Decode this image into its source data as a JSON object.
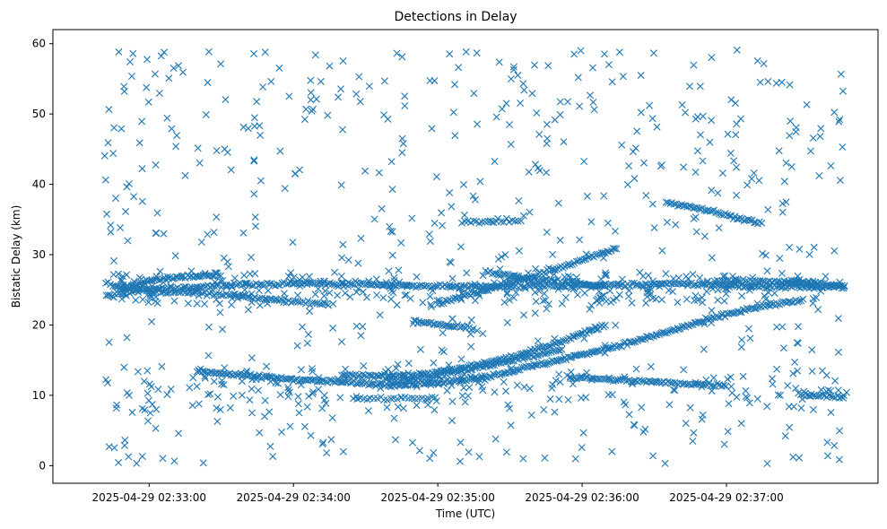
{
  "chart_data": {
    "type": "scatter",
    "title": "Detections in Delay",
    "xlabel": "Time (UTC)",
    "ylabel": "Bistatic Delay (km)",
    "marker": "x",
    "color": "#1f77b4",
    "xlim_seconds": [
      -0.33,
      5.39
    ],
    "ylim": [
      -2.5,
      62
    ],
    "x_reference": "2025-04-29 02:32:40",
    "x_ticks": [
      {
        "label": "2025-04-29 02:33:00",
        "t": 20
      },
      {
        "label": "2025-04-29 02:34:00",
        "t": 80
      },
      {
        "label": "2025-04-29 02:35:00",
        "t": 140
      },
      {
        "label": "2025-04-29 02:36:00",
        "t": 200
      },
      {
        "label": "2025-04-29 02:37:00",
        "t": 260
      }
    ],
    "y_ticks": [
      {
        "label": "0",
        "v": 0
      },
      {
        "label": "10",
        "v": 10
      },
      {
        "label": "20",
        "v": 20
      },
      {
        "label": "30",
        "v": 30
      },
      {
        "label": "40",
        "v": 40
      },
      {
        "label": "50",
        "v": 50
      },
      {
        "label": "60",
        "v": 60
      }
    ],
    "tracks": [
      {
        "points": [
          [
            2,
            24.2
          ],
          [
            20,
            25.0
          ],
          [
            40,
            25.4
          ],
          [
            60,
            25.8
          ],
          [
            80,
            25.9
          ],
          [
            100,
            25.8
          ],
          [
            120,
            25.6
          ],
          [
            140,
            25.5
          ],
          [
            170,
            25.5
          ],
          [
            200,
            25.6
          ],
          [
            230,
            25.8
          ],
          [
            250,
            25.8
          ],
          [
            270,
            25.5
          ],
          [
            300,
            25.4
          ],
          [
            309,
            25.5
          ]
        ],
        "step": 0.9
      },
      {
        "points": [
          [
            8,
            25.0
          ],
          [
            20,
            26.2
          ],
          [
            32,
            26.8
          ],
          [
            44,
            27.1
          ],
          [
            50,
            27.2
          ]
        ],
        "step": 0.8
      },
      {
        "points": [
          [
            2,
            26.0
          ],
          [
            12,
            25.2
          ],
          [
            20,
            24.8
          ],
          [
            40,
            24.6
          ],
          [
            60,
            24.0
          ],
          [
            80,
            23.3
          ],
          [
            95,
            23.0
          ]
        ],
        "step": 1.0
      },
      {
        "points": [
          [
            40,
            13.5
          ],
          [
            60,
            12.8
          ],
          [
            80,
            12.3
          ],
          [
            100,
            11.9
          ],
          [
            120,
            11.5
          ],
          [
            140,
            11.8
          ],
          [
            160,
            12.6
          ],
          [
            180,
            14.2
          ],
          [
            200,
            15.8
          ],
          [
            220,
            17.5
          ],
          [
            240,
            19.5
          ],
          [
            255,
            21.0
          ],
          [
            270,
            22.3
          ],
          [
            285,
            23.2
          ],
          [
            292,
            23.5
          ]
        ],
        "step": 0.75
      },
      {
        "points": [
          [
            100,
            12.8
          ],
          [
            115,
            12.8
          ],
          [
            130,
            12.9
          ],
          [
            145,
            13.5
          ],
          [
            160,
            14.6
          ],
          [
            175,
            15.8
          ],
          [
            190,
            17.5
          ],
          [
            203,
            19.2
          ],
          [
            210,
            20.0
          ]
        ],
        "step": 0.75
      },
      {
        "points": [
          [
            120,
            11.8
          ],
          [
            140,
            12.8
          ],
          [
            160,
            14.2
          ],
          [
            180,
            15.6
          ],
          [
            192,
            16.5
          ]
        ],
        "step": 0.9
      },
      {
        "points": [
          [
            140,
            23.0
          ],
          [
            160,
            25.0
          ],
          [
            180,
            27.0
          ],
          [
            200,
            29.2
          ],
          [
            215,
            31.0
          ]
        ],
        "step": 0.8
      },
      {
        "points": [
          [
            160,
            27.5
          ],
          [
            170,
            27.0
          ],
          [
            180,
            26.5
          ],
          [
            195,
            26.0
          ],
          [
            210,
            25.5
          ]
        ],
        "step": 0.9
      },
      {
        "points": [
          [
            195,
            12.5
          ],
          [
            215,
            12.2
          ],
          [
            240,
            11.7
          ],
          [
            260,
            11.4
          ]
        ],
        "step": 0.9
      },
      {
        "points": [
          [
            235,
            37.5
          ],
          [
            250,
            36.5
          ],
          [
            265,
            35.2
          ],
          [
            275,
            34.5
          ]
        ],
        "step": 0.8
      },
      {
        "points": [
          [
            130,
            20.5
          ],
          [
            142,
            20.0
          ],
          [
            155,
            19.5
          ]
        ],
        "step": 0.8
      },
      {
        "points": [
          [
            282,
            26.0
          ],
          [
            300,
            25.7
          ],
          [
            309,
            25.5
          ]
        ],
        "step": 0.8
      },
      {
        "points": [
          [
            290,
            10.2
          ],
          [
            309,
            9.8
          ]
        ],
        "step": 0.9
      },
      {
        "points": [
          [
            150,
            34.6
          ],
          [
            165,
            34.8
          ],
          [
            175,
            34.8
          ]
        ],
        "step": 1.2
      },
      {
        "points": [
          [
            105,
            9.5
          ],
          [
            125,
            9.6
          ],
          [
            140,
            9.5
          ]
        ],
        "step": 1.4
      },
      {
        "points": [
          [
            255,
            26.3
          ],
          [
            285,
            26.2
          ],
          [
            300,
            26.0
          ]
        ],
        "step": 1.0
      }
    ],
    "clutter_count": 620,
    "point_count_estimate": 2100
  }
}
